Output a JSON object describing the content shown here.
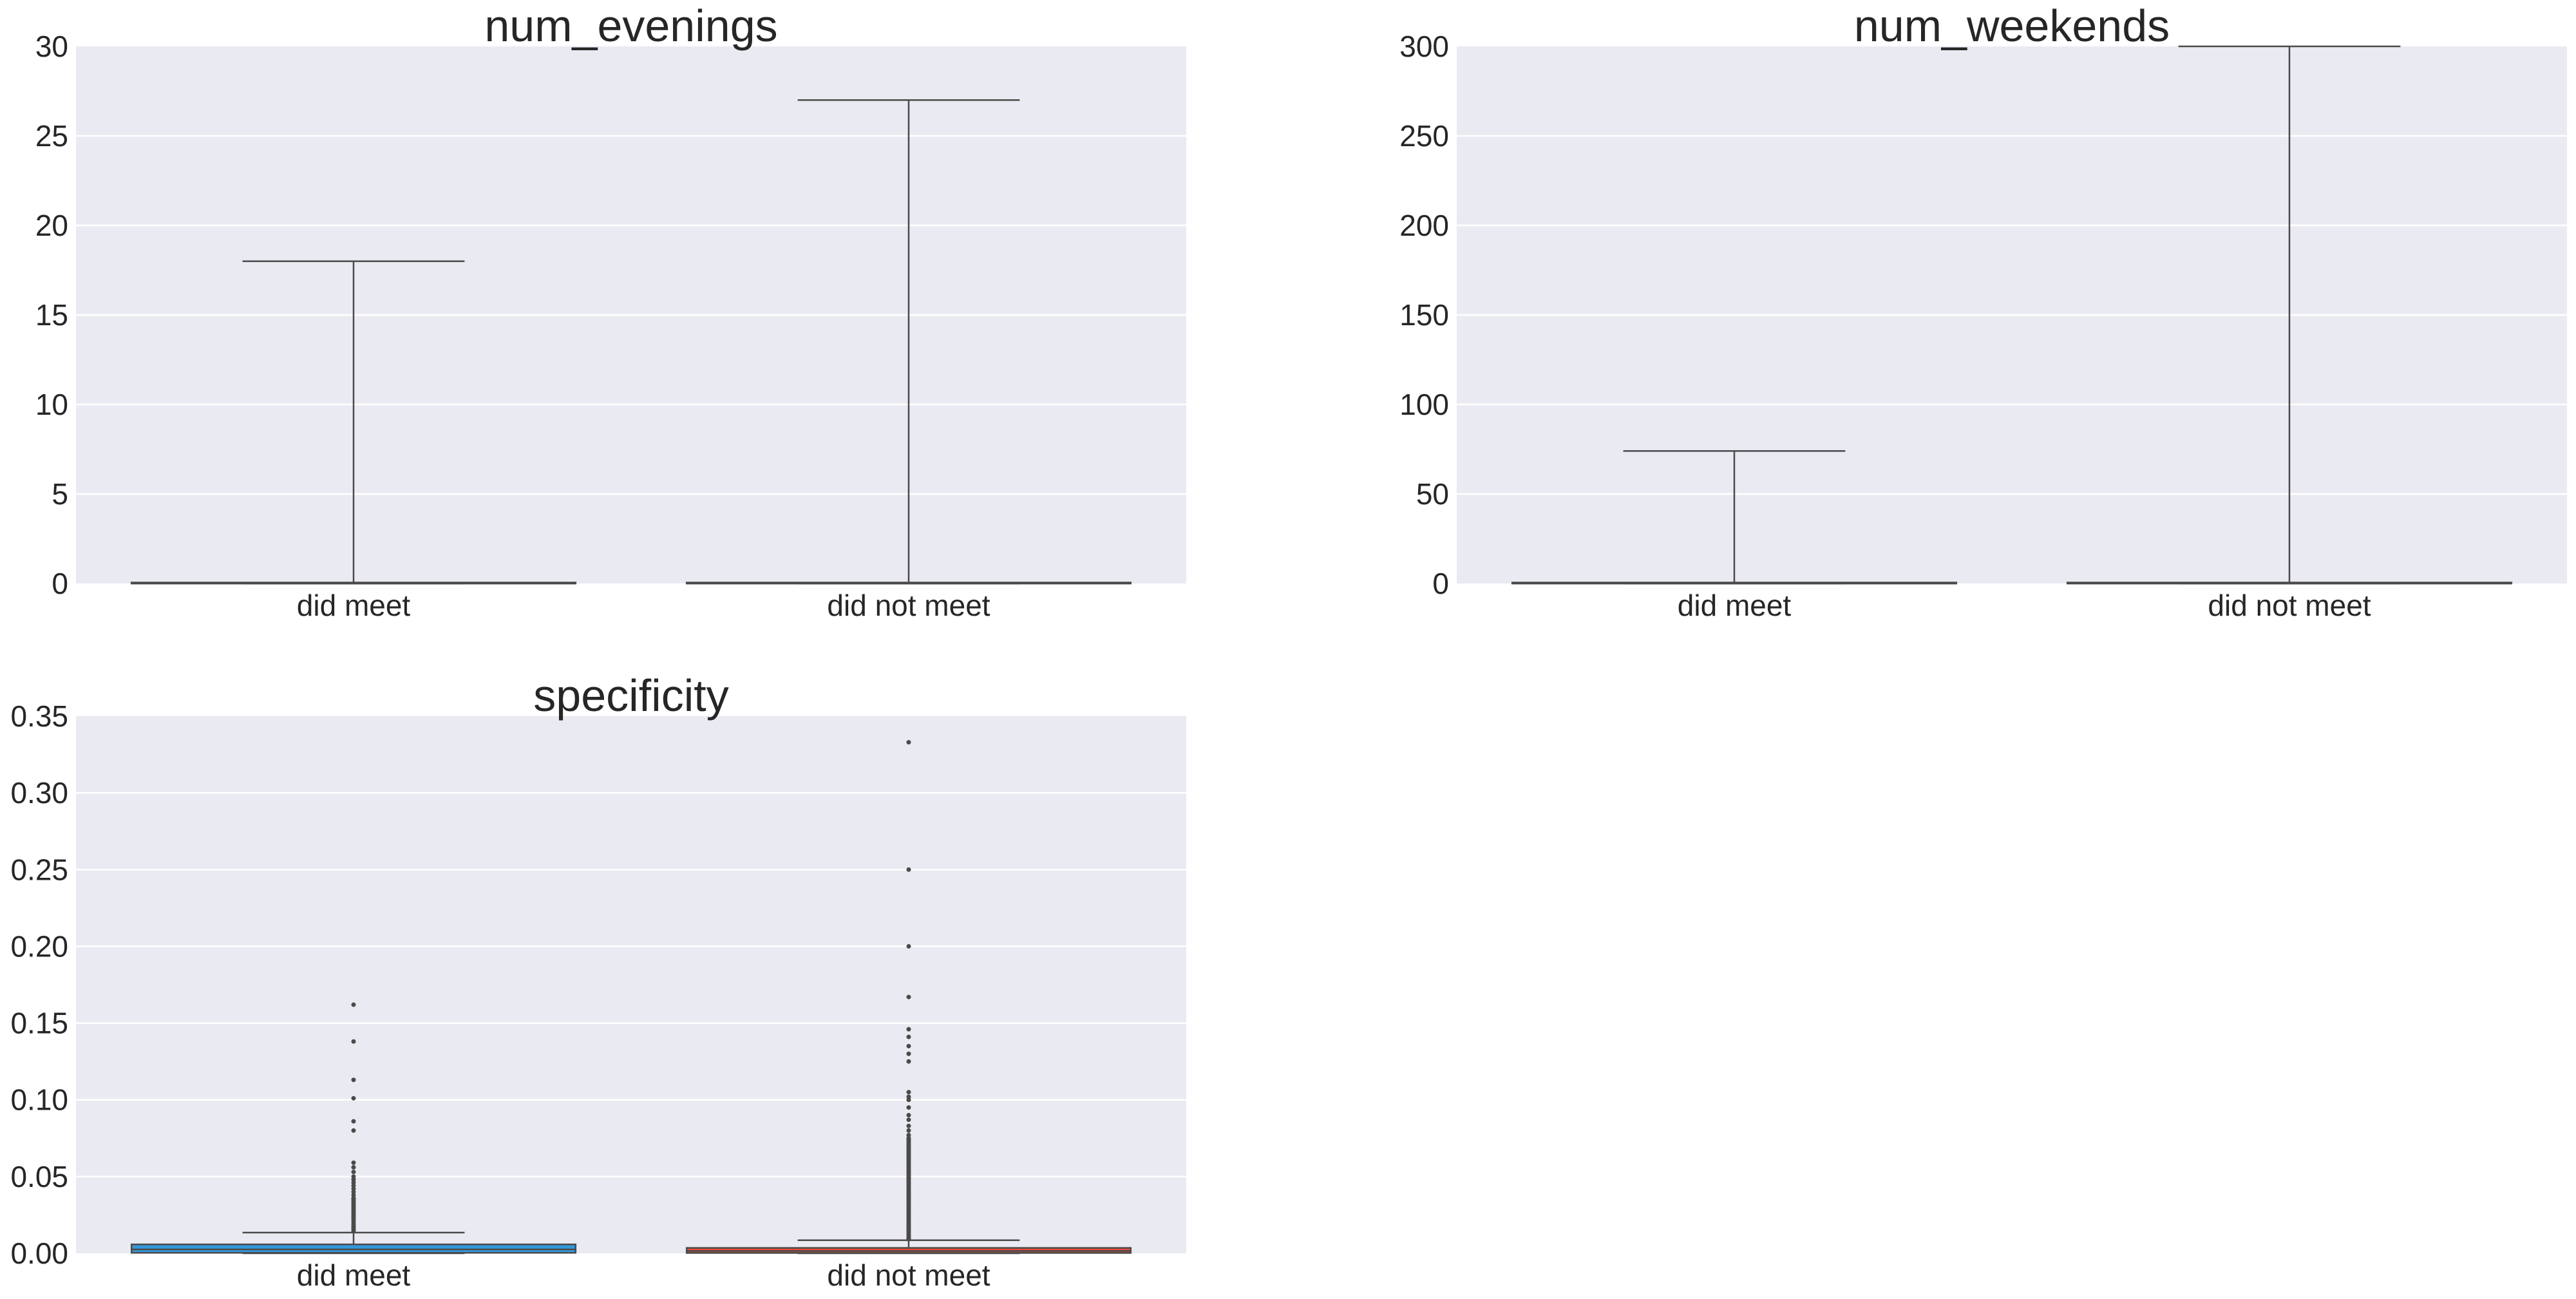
{
  "chart_data": [
    {
      "type": "box",
      "title": "num_evenings",
      "categories": [
        "did meet",
        "did not meet"
      ],
      "ylim": [
        0,
        30
      ],
      "yticks": [
        0,
        5,
        10,
        15,
        20,
        25,
        30
      ],
      "ytick_labels": [
        "0",
        "5",
        "10",
        "15",
        "20",
        "25",
        "30"
      ],
      "grid": true,
      "colors": [
        "#3498db",
        "#e74c3c"
      ],
      "boxes": [
        {
          "category": "did meet",
          "whisker_low": 0,
          "q1": 0,
          "median": 0,
          "q3": 0,
          "whisker_high": 18,
          "fliers": []
        },
        {
          "category": "did not meet",
          "whisker_low": 0,
          "q1": 0,
          "median": 0,
          "q3": 0,
          "whisker_high": 27,
          "fliers": []
        }
      ]
    },
    {
      "type": "box",
      "title": "num_weekends",
      "categories": [
        "did meet",
        "did not meet"
      ],
      "ylim": [
        0,
        300
      ],
      "yticks": [
        0,
        50,
        100,
        150,
        200,
        250,
        300
      ],
      "ytick_labels": [
        "0",
        "50",
        "100",
        "150",
        "200",
        "250",
        "300"
      ],
      "grid": true,
      "colors": [
        "#3498db",
        "#e74c3c"
      ],
      "boxes": [
        {
          "category": "did meet",
          "whisker_low": 0,
          "q1": 0,
          "median": 0,
          "q3": 0,
          "whisker_high": 74,
          "fliers": []
        },
        {
          "category": "did not meet",
          "whisker_low": 0,
          "q1": 0,
          "median": 0,
          "q3": 0,
          "whisker_high": 300,
          "fliers": []
        }
      ]
    },
    {
      "type": "box",
      "title": "specificity",
      "categories": [
        "did meet",
        "did not meet"
      ],
      "ylim": [
        0,
        0.35
      ],
      "yticks": [
        0,
        0.05,
        0.1,
        0.15,
        0.2,
        0.25,
        0.3,
        0.35
      ],
      "ytick_labels": [
        "0.00",
        "0.05",
        "0.10",
        "0.15",
        "0.20",
        "0.25",
        "0.30",
        "0.35"
      ],
      "grid": true,
      "colors": [
        "#3498db",
        "#e74c3c"
      ],
      "boxes": [
        {
          "category": "did meet",
          "whisker_low": 0,
          "q1": 0.0003,
          "median": 0.0025,
          "q3": 0.0058,
          "whisker_high": 0.0135,
          "fliers": [
            0.0145,
            0.0155,
            0.0165,
            0.0175,
            0.0185,
            0.0195,
            0.021,
            0.022,
            0.023,
            0.024,
            0.025,
            0.026,
            0.027,
            0.028,
            0.029,
            0.03,
            0.031,
            0.032,
            0.033,
            0.034,
            0.035,
            0.036,
            0.038,
            0.04,
            0.042,
            0.044,
            0.046,
            0.048,
            0.05,
            0.053,
            0.056,
            0.059,
            0.08,
            0.086,
            0.101,
            0.113,
            0.138,
            0.162
          ]
        },
        {
          "category": "did not meet",
          "whisker_low": 0,
          "q1": 0.0002,
          "median": 0.0015,
          "q3": 0.0035,
          "whisker_high": 0.0085,
          "fliers": [
            0.009,
            0.0095,
            0.01,
            0.0105,
            0.011,
            0.012,
            0.013,
            0.014,
            0.015,
            0.016,
            0.017,
            0.018,
            0.019,
            0.02,
            0.021,
            0.022,
            0.023,
            0.024,
            0.025,
            0.026,
            0.027,
            0.028,
            0.029,
            0.03,
            0.031,
            0.032,
            0.033,
            0.034,
            0.035,
            0.036,
            0.037,
            0.038,
            0.039,
            0.04,
            0.041,
            0.042,
            0.043,
            0.044,
            0.045,
            0.046,
            0.047,
            0.048,
            0.049,
            0.05,
            0.051,
            0.052,
            0.053,
            0.054,
            0.055,
            0.056,
            0.057,
            0.058,
            0.059,
            0.06,
            0.061,
            0.062,
            0.063,
            0.064,
            0.065,
            0.066,
            0.067,
            0.068,
            0.069,
            0.07,
            0.071,
            0.072,
            0.073,
            0.074,
            0.075,
            0.077,
            0.08,
            0.083,
            0.087,
            0.09,
            0.095,
            0.1,
            0.102,
            0.105,
            0.125,
            0.13,
            0.135,
            0.141,
            0.146,
            0.167,
            0.2,
            0.25,
            0.333
          ]
        }
      ]
    }
  ]
}
